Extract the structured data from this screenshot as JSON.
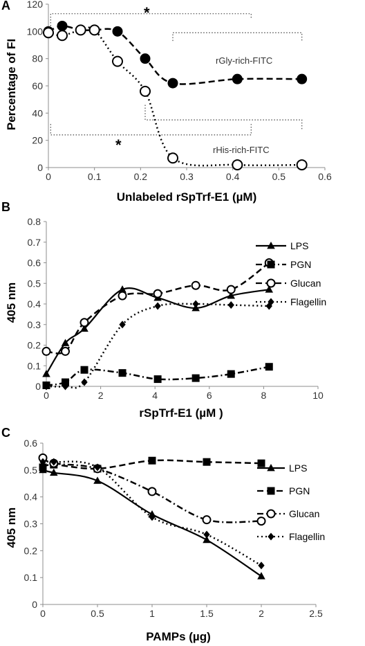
{
  "chart_data": [
    {
      "type": "line",
      "panel": "A",
      "xlabel": "Unlabeled rSpTrf-E1 (µM)",
      "ylabel": "Percentage of FI",
      "xlim": [
        0,
        0.6
      ],
      "ylim": [
        0,
        120
      ],
      "xticks": [
        "0",
        "0.1",
        "0.2",
        "0.3",
        "0.4",
        "0.5",
        "0.6"
      ],
      "yticks": [
        "0",
        "20",
        "40",
        "60",
        "80",
        "100",
        "120"
      ],
      "grid": false,
      "legend": "inline labels",
      "series": [
        {
          "name": "rGly-rich-FITC",
          "marker": "filled-circle",
          "line": "dashed",
          "x": [
            0,
            0.03,
            0.07,
            0.1,
            0.15,
            0.21,
            0.27,
            0.41,
            0.55
          ],
          "y": [
            100,
            104,
            101,
            101,
            100,
            80,
            62,
            65,
            65
          ]
        },
        {
          "name": "rHis-rich-FITC",
          "marker": "open-circle",
          "line": "dotted",
          "x": [
            0,
            0.03,
            0.07,
            0.1,
            0.15,
            0.21,
            0.27,
            0.41,
            0.55
          ],
          "y": [
            99,
            97,
            101,
            101,
            78,
            56,
            7,
            2,
            2
          ]
        }
      ],
      "annotations": [
        "*",
        "*"
      ]
    },
    {
      "type": "line",
      "panel": "B",
      "xlabel": "rSpTrf-E1 (µM )",
      "ylabel": "405 nm",
      "xlim": [
        0,
        10
      ],
      "ylim": [
        0,
        0.8
      ],
      "xticks": [
        "0",
        "2",
        "4",
        "6",
        "8",
        "10"
      ],
      "yticks": [
        "0",
        "0.1",
        "0.2",
        "0.3",
        "0.4",
        "0.5",
        "0.6",
        "0.7",
        "0.8"
      ],
      "grid": false,
      "legend": "right",
      "series": [
        {
          "name": "LPS",
          "marker": "triangle",
          "line": "solid",
          "x": [
            0,
            0.7,
            1.4,
            2.8,
            4.1,
            5.5,
            6.8,
            8.2
          ],
          "y": [
            0.06,
            0.21,
            0.28,
            0.47,
            0.43,
            0.38,
            0.44,
            0.47
          ]
        },
        {
          "name": "PGN",
          "marker": "square",
          "line": "dash-dot",
          "x": [
            0,
            0.7,
            1.4,
            2.8,
            4.1,
            5.5,
            6.8,
            8.2
          ],
          "y": [
            0.005,
            0.02,
            0.08,
            0.065,
            0.035,
            0.04,
            0.06,
            0.095
          ]
        },
        {
          "name": "Glucan",
          "marker": "open-circle",
          "line": "dashed",
          "x": [
            0,
            0.7,
            1.4,
            2.8,
            4.1,
            5.5,
            6.8,
            8.2
          ],
          "y": [
            0.17,
            0.17,
            0.31,
            0.44,
            0.45,
            0.49,
            0.47,
            0.6
          ]
        },
        {
          "name": "Flagellin",
          "marker": "diamond",
          "line": "dotted",
          "x": [
            0,
            0.7,
            1.4,
            2.8,
            4.1,
            5.5,
            6.8,
            8.2
          ],
          "y": [
            0.0,
            0.0,
            0.02,
            0.3,
            0.39,
            0.4,
            0.395,
            0.39
          ]
        }
      ]
    },
    {
      "type": "line",
      "panel": "C",
      "xlabel": "PAMPs (µg)",
      "ylabel": "405 nm",
      "xlim": [
        0,
        2.5
      ],
      "ylim": [
        0,
        0.6
      ],
      "xticks": [
        "0",
        "0.5",
        "1",
        "1.5",
        "2",
        "2.5"
      ],
      "yticks": [
        "0",
        "0.1",
        "0.2",
        "0.3",
        "0.4",
        "0.5",
        "0.6"
      ],
      "grid": false,
      "legend": "right",
      "series": [
        {
          "name": "LPS",
          "marker": "triangle",
          "line": "solid",
          "x": [
            0,
            0.1,
            0.5,
            1.0,
            1.5,
            2.0
          ],
          "y": [
            0.5,
            0.49,
            0.46,
            0.335,
            0.24,
            0.105
          ]
        },
        {
          "name": "PGN",
          "marker": "square",
          "line": "dashed",
          "x": [
            0,
            0.1,
            0.5,
            1.0,
            1.5,
            2.0
          ],
          "y": [
            0.51,
            0.52,
            0.505,
            0.535,
            0.53,
            0.525
          ]
        },
        {
          "name": "Glucan",
          "marker": "open-circle",
          "line": "dash-dot",
          "x": [
            0,
            0.1,
            0.5,
            1.0,
            1.5,
            2.0
          ],
          "y": [
            0.545,
            0.525,
            0.505,
            0.42,
            0.315,
            0.31
          ]
        },
        {
          "name": "Flagellin",
          "marker": "diamond",
          "line": "dotted",
          "x": [
            0,
            0.1,
            0.5,
            1.0,
            1.5,
            2.0
          ],
          "y": [
            0.53,
            0.53,
            0.51,
            0.325,
            0.26,
            0.145
          ]
        }
      ]
    }
  ]
}
